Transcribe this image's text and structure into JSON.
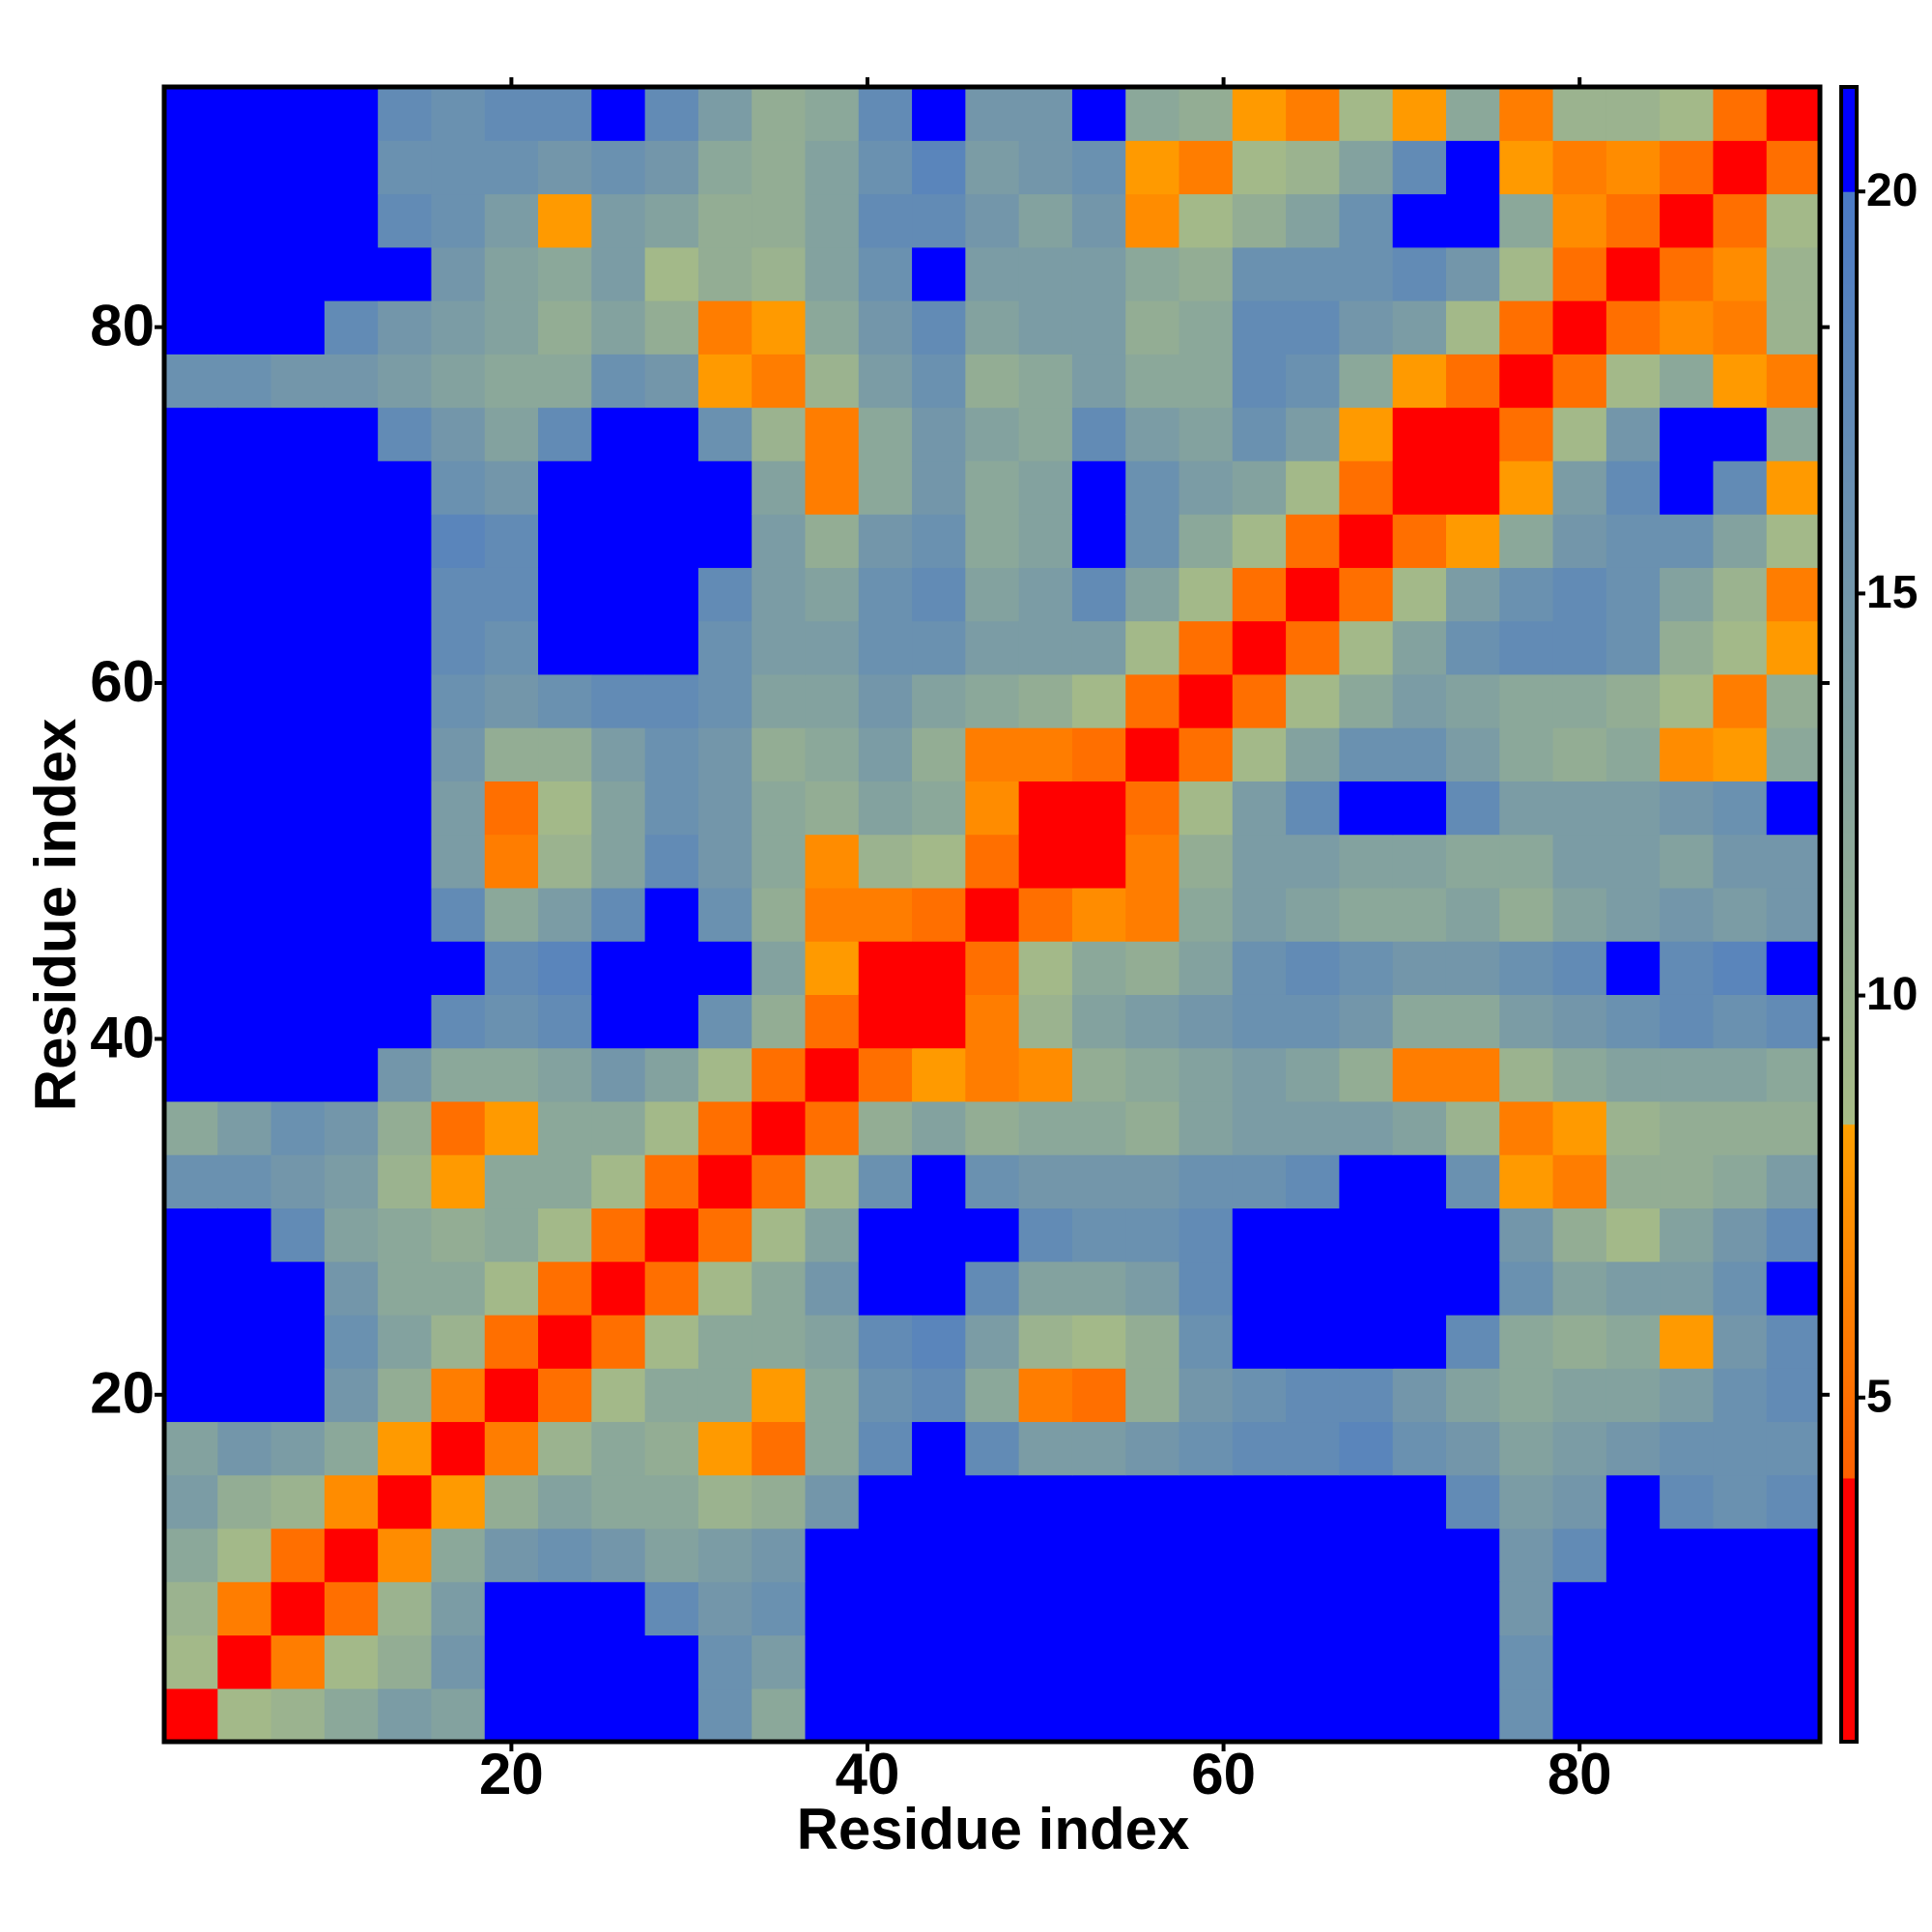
{
  "chart_data": {
    "type": "heatmap",
    "xlabel": "Residue index",
    "ylabel": "Residue index",
    "x": [
      2,
      5,
      8,
      11,
      14,
      17,
      20,
      23,
      26,
      29,
      32,
      35,
      38,
      41,
      44,
      47,
      50,
      53,
      56,
      59,
      62,
      65,
      68,
      71,
      74,
      77,
      80,
      83,
      86,
      89,
      92
    ],
    "y": [
      2,
      5,
      8,
      11,
      14,
      17,
      20,
      23,
      26,
      29,
      32,
      35,
      38,
      41,
      44,
      47,
      50,
      53,
      56,
      59,
      62,
      65,
      68,
      71,
      74,
      77,
      80,
      83,
      86,
      89,
      92
    ],
    "symmetric": true,
    "z": [
      [
        2,
        9,
        10,
        12,
        14,
        13,
        22,
        22,
        22,
        22,
        16,
        12,
        22,
        22,
        22,
        22,
        22,
        22,
        22,
        22,
        22,
        22,
        22,
        22,
        22,
        16,
        22,
        22,
        22,
        22,
        22
      ],
      [
        2,
        6,
        9,
        11,
        15,
        22,
        22,
        22,
        22,
        16,
        14,
        22,
        22,
        22,
        22,
        22,
        22,
        22,
        22,
        22,
        22,
        22,
        22,
        22,
        16,
        22,
        22,
        22,
        22,
        22
      ],
      [
        2,
        5,
        10,
        14,
        22,
        22,
        22,
        17,
        15,
        16,
        22,
        22,
        22,
        22,
        22,
        22,
        22,
        22,
        22,
        22,
        22,
        22,
        22,
        15,
        22,
        22,
        22,
        22,
        22
      ],
      [
        2,
        7,
        12,
        15,
        16,
        15,
        13,
        14,
        15,
        22,
        22,
        22,
        22,
        22,
        22,
        22,
        22,
        22,
        22,
        22,
        22,
        22,
        15,
        17,
        22,
        22,
        22,
        22
      ],
      [
        2,
        8,
        11,
        13,
        12,
        12,
        10,
        11,
        15,
        22,
        22,
        22,
        22,
        22,
        22,
        22,
        22,
        22,
        22,
        22,
        17,
        14,
        15,
        22,
        17,
        16,
        17
      ],
      [
        2,
        6,
        10,
        12,
        11,
        8,
        5,
        12,
        17,
        22,
        17,
        14,
        14,
        15,
        16,
        17,
        17,
        18,
        16,
        15,
        13,
        14,
        15,
        16,
        16,
        16
      ],
      [
        2,
        5,
        9,
        12,
        12,
        8,
        12,
        16,
        17,
        12,
        6,
        5,
        11,
        15,
        16,
        17,
        17,
        15,
        13,
        12,
        13,
        13,
        14,
        16,
        17
      ],
      [
        2,
        5,
        9,
        12,
        12,
        13,
        17,
        18,
        14,
        10,
        9,
        11,
        16,
        22,
        22,
        22,
        22,
        17,
        12,
        11,
        12,
        8,
        15,
        17
      ],
      [
        2,
        5,
        9,
        12,
        15,
        22,
        22,
        17,
        13,
        13,
        14,
        17,
        22,
        22,
        22,
        22,
        22,
        16,
        13,
        14,
        14,
        16,
        22
      ],
      [
        2,
        5,
        9,
        13,
        22,
        22,
        22,
        17,
        16,
        16,
        17,
        22,
        22,
        22,
        22,
        22,
        15,
        11,
        9,
        13,
        15,
        17
      ],
      [
        2,
        5,
        9,
        16,
        22,
        16,
        15,
        15,
        15,
        16,
        16,
        17,
        22,
        22,
        16,
        8,
        6,
        11,
        11,
        12,
        14
      ],
      [
        2,
        5,
        11,
        13,
        11,
        12,
        12,
        11,
        13,
        14,
        14,
        14,
        13,
        10,
        6,
        8,
        10,
        11,
        11,
        11
      ],
      [
        2,
        5,
        8,
        6,
        7,
        11,
        12,
        13,
        14,
        13,
        11,
        6,
        6,
        10,
        12,
        13,
        13,
        13,
        12
      ],
      [
        2,
        4,
        6,
        10,
        13,
        14,
        15,
        16,
        16,
        15,
        12,
        12,
        14,
        15,
        16,
        17,
        16,
        17
      ],
      [
        2,
        5,
        9,
        12,
        11,
        13,
        16,
        17,
        16,
        15,
        15,
        16,
        17,
        22,
        17,
        18,
        22
      ],
      [
        2,
        5,
        7,
        6,
        12,
        14,
        13,
        12,
        12,
        13,
        11,
        13,
        14,
        15,
        14,
        15
      ],
      [
        2,
        4,
        6,
        11,
        14,
        14,
        13,
        13,
        12,
        12,
        14,
        14,
        13,
        15,
        15
      ],
      [
        2,
        5,
        9,
        14,
        17,
        22,
        22,
        17,
        14,
        14,
        14,
        15,
        16,
        22
      ],
      [
        2,
        5,
        9,
        13,
        16,
        16,
        14,
        12,
        11,
        12,
        7,
        8,
        12
      ],
      [
        2,
        5,
        9,
        12,
        14,
        13,
        12,
        12,
        11,
        9,
        6,
        11
      ],
      [
        2,
        5,
        9,
        13,
        16,
        17,
        17,
        16,
        11,
        9,
        8
      ],
      [
        2,
        5,
        9,
        14,
        16,
        17,
        16,
        13,
        10,
        6
      ],
      [
        2,
        5,
        8,
        12,
        15,
        16,
        16,
        13,
        9
      ],
      [
        2,
        4,
        8,
        14,
        17,
        22,
        17,
        8
      ],
      [
        2,
        5,
        9,
        15,
        22,
        22,
        12
      ],
      [
        2,
        5,
        9,
        12,
        8,
        6
      ],
      [
        2,
        5,
        7,
        6,
        10
      ],
      [
        2,
        5,
        7,
        10
      ],
      [
        2,
        5,
        9
      ],
      [
        2,
        5
      ],
      [
        2
      ]
    ],
    "xlim": [
      0.5,
      93.5
    ],
    "ylim": [
      0.5,
      93.5
    ],
    "xticks": [
      20,
      40,
      60,
      80
    ],
    "yticks": [
      20,
      40,
      60,
      80
    ],
    "clim": [
      0.72,
      21.3
    ],
    "cticks": [
      5,
      10,
      15,
      20
    ],
    "colorscale": [
      [
        0.72,
        "#ff0000"
      ],
      [
        4,
        "#ff0000"
      ],
      [
        4,
        "#ff6000"
      ],
      [
        8.4,
        "#ffa000"
      ],
      [
        8.4,
        "#a8bc86"
      ],
      [
        20,
        "#4a7ac6"
      ],
      [
        20,
        "#0000ff"
      ],
      [
        21.3,
        "#0000ff"
      ]
    ]
  }
}
